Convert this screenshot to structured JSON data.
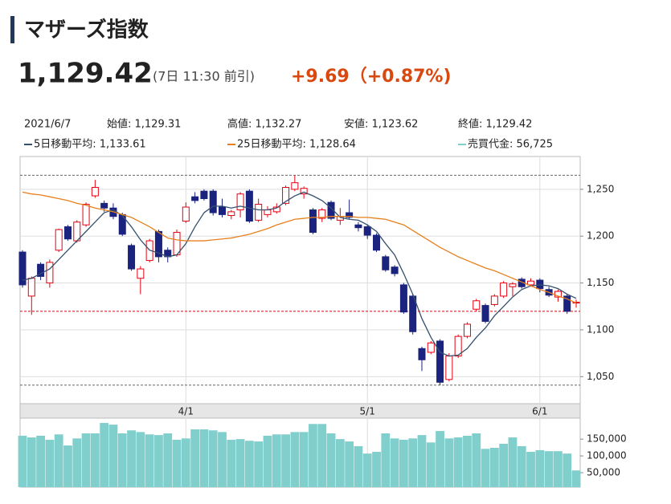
{
  "header": {
    "title": "マザーズ指数",
    "price": "1,129.42",
    "time_note": "(7日 11:30 前引)",
    "change": "+9.69（+0.87%)"
  },
  "chart_data": {
    "type": "candlestick",
    "info": [
      "2021/6/7",
      "始値: 1,129.31",
      "高値: 1,132.27",
      "安値: 1,123.62",
      "終値: 1,129.42"
    ],
    "categories": [
      null,
      null,
      null,
      null,
      null,
      null,
      null,
      null,
      null,
      null,
      null,
      null,
      null,
      null,
      null,
      null,
      null,
      null,
      "4/1",
      null,
      null,
      null,
      null,
      null,
      null,
      null,
      null,
      null,
      null,
      null,
      null,
      null,
      null,
      null,
      null,
      null,
      null,
      null,
      "5/1",
      null,
      null,
      null,
      null,
      null,
      null,
      null,
      null,
      null,
      null,
      null,
      null,
      null,
      null,
      null,
      null,
      null,
      null,
      "6/1",
      null,
      null,
      null,
      null
    ],
    "open": [
      1183,
      1136,
      1170,
      1150,
      1185,
      1210,
      1195,
      1212,
      1243,
      1235,
      1230,
      1223,
      1190,
      1155,
      1174,
      1205,
      1185,
      1180,
      1216,
      1242,
      1248,
      1248,
      1231,
      1222,
      1228,
      1248,
      1217,
      1223,
      1226,
      1235,
      1250,
      1245,
      1228,
      1219,
      1236,
      1217,
      1225,
      1212,
      1210,
      1201,
      1178,
      1167,
      1148,
      1136,
      1080,
      1076,
      1088,
      1047,
      1072,
      1093,
      1122,
      1126,
      1127,
      1136,
      1146,
      1154,
      1148,
      1153,
      1143,
      1135,
      1136,
      1129.31
    ],
    "high": [
      1185,
      1157,
      1172,
      1175,
      1208,
      1212,
      1217,
      1236,
      1260,
      1238,
      1235,
      1225,
      1192,
      1168,
      1197,
      1207,
      1188,
      1207,
      1236,
      1247,
      1250,
      1250,
      1240,
      1228,
      1247,
      1250,
      1240,
      1232,
      1235,
      1254,
      1265,
      1253,
      1230,
      1230,
      1238,
      1230,
      1239,
      1215,
      1212,
      1203,
      1180,
      1169,
      1150,
      1138,
      1082,
      1088,
      1090,
      1075,
      1095,
      1108,
      1133,
      1128,
      1138,
      1152,
      1151,
      1156,
      1155,
      1155,
      1146,
      1143,
      1138,
      1132.27
    ],
    "low": [
      1145,
      1116,
      1153,
      1145,
      1183,
      1195,
      1193,
      1210,
      1241,
      1226,
      1218,
      1200,
      1163,
      1138,
      1172,
      1172,
      1172,
      1178,
      1214,
      1235,
      1238,
      1222,
      1220,
      1218,
      1220,
      1214,
      1215,
      1220,
      1224,
      1233,
      1248,
      1240,
      1202,
      1215,
      1217,
      1212,
      1218,
      1205,
      1197,
      1183,
      1162,
      1157,
      1117,
      1095,
      1056,
      1074,
      1041,
      1045,
      1070,
      1091,
      1120,
      1107,
      1125,
      1134,
      1136,
      1144,
      1146,
      1140,
      1135,
      1130,
      1117,
      1123.62
    ],
    "close": [
      1148,
      1155,
      1157,
      1172,
      1207,
      1197,
      1215,
      1234,
      1252,
      1230,
      1221,
      1202,
      1165,
      1165,
      1195,
      1178,
      1178,
      1204,
      1231,
      1238,
      1240,
      1225,
      1223,
      1226,
      1245,
      1216,
      1234,
      1228,
      1231,
      1252,
      1257,
      1251,
      1204,
      1228,
      1219,
      1221,
      1220,
      1209,
      1201,
      1185,
      1164,
      1160,
      1119,
      1098,
      1068,
      1086,
      1044,
      1072,
      1093,
      1106,
      1131,
      1109,
      1136,
      1150,
      1149,
      1146,
      1152,
      1144,
      1137,
      1141,
      1119.73,
      1129.42
    ],
    "up_color": "#e60012",
    "down_color": "#1a237e",
    "series": [
      {
        "name": "5日移動平均: 1,133.61",
        "color": "#34506e",
        "values": [
          1153,
          1155,
          1160,
          1165,
          1175,
          1185,
          1195,
          1205,
          1215,
          1225,
          1228,
          1222,
          1210,
          1196,
          1185,
          1182,
          1178,
          1180,
          1192,
          1210,
          1225,
          1232,
          1232,
          1230,
          1232,
          1230,
          1228,
          1228,
          1230,
          1237,
          1243,
          1247,
          1243,
          1238,
          1230,
          1220,
          1218,
          1217,
          1212,
          1205,
          1192,
          1180,
          1160,
          1138,
          1112,
          1092,
          1076,
          1072,
          1073,
          1080,
          1092,
          1102,
          1115,
          1125,
          1135,
          1143,
          1147,
          1148,
          1147,
          1144,
          1138,
          1133.61
        ]
      },
      {
        "name": "25日移動平均: 1,128.64",
        "color": "#e8801e",
        "values": [
          1247,
          1245,
          1244,
          1242,
          1240,
          1238,
          1235,
          1233,
          1230,
          1228,
          1226,
          1223,
          1220,
          1215,
          1210,
          1204,
          1198,
          1196,
          1195,
          1195,
          1195,
          1196,
          1197,
          1198,
          1200,
          1202,
          1205,
          1208,
          1212,
          1215,
          1218,
          1219,
          1220,
          1220,
          1221,
          1221,
          1221,
          1220,
          1220,
          1219,
          1218,
          1215,
          1212,
          1206,
          1200,
          1194,
          1188,
          1183,
          1178,
          1174,
          1170,
          1166,
          1163,
          1159,
          1155,
          1151,
          1147,
          1143,
          1140,
          1136,
          1133,
          1128.64
        ]
      }
    ],
    "ylim": [
      1028,
      1285
    ],
    "yticks": [
      {
        "value": 1050,
        "label": "1,050"
      },
      {
        "value": 1100,
        "label": "1,100"
      },
      {
        "value": 1150,
        "label": "1,150"
      },
      {
        "value": 1200,
        "label": "1,200"
      },
      {
        "value": 1250,
        "label": "1,250"
      }
    ],
    "reference_lines": [
      {
        "value": 1265,
        "color": "#666"
      },
      {
        "value": 1041,
        "color": "#666"
      },
      {
        "value": 1119.73,
        "color": "#e60012"
      }
    ],
    "volume": {
      "name": "売買代金: 56,725",
      "color": "#80cfcc",
      "values": [
        160000,
        155000,
        160000,
        148000,
        164000,
        131000,
        152000,
        167000,
        167000,
        198000,
        193000,
        167000,
        176000,
        171000,
        164000,
        162000,
        167000,
        148000,
        152000,
        179000,
        179000,
        176000,
        171000,
        148000,
        150000,
        145000,
        143000,
        160000,
        164000,
        164000,
        171000,
        171000,
        195000,
        195000,
        167000,
        150000,
        143000,
        129000,
        107000,
        112000,
        167000,
        152000,
        148000,
        152000,
        162000,
        140000,
        174000,
        152000,
        155000,
        160000,
        167000,
        121000,
        124000,
        136000,
        155000,
        129000,
        112000,
        117000,
        114000,
        114000,
        107000,
        56725
      ]
    },
    "volume_ylim": [
      7000,
      210000
    ],
    "volume_yticks": [
      {
        "value": 50000,
        "label": "50,000"
      },
      {
        "value": 100000,
        "label": "100,000"
      },
      {
        "value": 150000,
        "label": "150,000"
      }
    ]
  }
}
